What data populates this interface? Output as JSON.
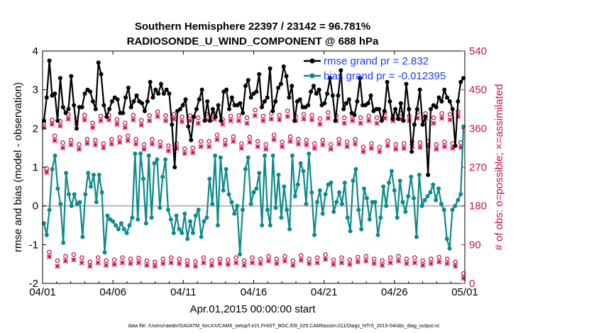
{
  "chart_data": {
    "type": "line",
    "title": "Southern Hemisphere 22397 / 23142 = 96.781%",
    "subtitle": "RADIOSONDE_U_WIND_COMPONENT @ 688 hPa",
    "xlabel": "Apr.01,2015 00:00:00 start",
    "ylabel": "rmse and bias (model - observation)",
    "y2label": "# of obs: o=possible; ×=assimilated",
    "footnote": "data file: /Users/raeder/DAI/ATM_forcXX/CAM6_setup/f.e21.FHIST_BGC.f09_025.CAM6assim.011/Diags_NTrS_2015-04/obs_diag_output.nc",
    "xlim": [
      0,
      30
    ],
    "ylim": [
      -2,
      4
    ],
    "y2lim": [
      0,
      540
    ],
    "x_ticks": [
      0,
      5,
      10,
      15,
      20,
      25,
      30
    ],
    "x_tick_labels": [
      "04/01",
      "04/06",
      "04/11",
      "04/16",
      "04/21",
      "04/26",
      "05/01"
    ],
    "y_ticks": [
      -2,
      -1,
      0,
      1,
      2,
      3,
      4
    ],
    "y_tick_labels": [
      "-2",
      "-1",
      "0",
      "1",
      "2",
      "3",
      "4"
    ],
    "y2_ticks": [
      0,
      90,
      180,
      270,
      360,
      450,
      540
    ],
    "y2_tick_labels": [
      "0",
      "90",
      "180",
      "270",
      "360",
      "450",
      "540"
    ],
    "colors": {
      "rmse": "#000000",
      "bias": "#0e8a8a",
      "obs": "#c8104f",
      "zero_line": "#b8b8b8",
      "legend_text": "#1a3cff"
    },
    "series": [
      {
        "name": "rmse grand pr = 2.832",
        "axis": "left",
        "values": [
          2.2,
          2.8,
          3.75,
          2.85,
          2.9,
          2.2,
          3.3,
          2.55,
          2.4,
          2.5,
          3.35,
          2.6,
          2.0,
          2.55,
          2.55,
          2.9,
          3.0,
          2.95,
          2.7,
          2.5,
          3.7,
          3.4,
          2.6,
          2.3,
          2.5,
          2.7,
          2.8,
          2.75,
          2.4,
          2.4,
          2.8,
          3.05,
          2.55,
          2.7,
          2.85,
          2.7,
          2.65,
          2.45,
          2.7,
          3.2,
          2.8,
          3.0,
          2.9,
          3.15,
          2.9,
          3.0,
          2.9,
          2.1,
          1.0,
          2.45,
          2.5,
          2.6,
          2.75,
          2.05,
          1.7,
          2.3,
          2.5,
          2.75,
          3.0,
          2.2,
          2.7,
          2.2,
          2.5,
          2.3,
          2.6,
          2.2,
          2.95,
          3.0,
          2.5,
          2.8,
          2.6,
          2.6,
          2.65,
          2.4,
          3.1,
          3.25,
          2.8,
          2.9,
          2.95,
          3.4,
          2.55,
          2.7,
          2.8,
          3.55,
          2.45,
          2.7,
          3.05,
          3.15,
          3.6,
          3.35,
          2.8,
          3.1,
          2.2,
          2.7,
          2.75,
          2.55,
          2.55,
          2.6,
          2.95,
          3.1,
          2.9,
          3.0,
          2.6,
          2.65,
          2.9,
          3.3,
          2.85,
          2.2,
          2.85,
          3.5,
          2.5,
          2.65,
          2.75,
          2.4,
          2.35,
          2.7,
          3.3,
          2.6,
          2.6,
          2.65,
          2.85,
          2.45,
          2.5,
          2.5,
          2.2,
          2.45,
          3.2,
          2.7,
          2.25,
          2.5,
          2.25,
          2.65,
          2.2,
          3.15,
          2.5,
          1.4,
          2.1,
          2.5,
          3.0,
          2.1,
          2.3,
          0.8,
          2.5,
          2.6,
          2.55,
          2.8,
          2.7,
          3.0,
          2.8,
          2.7,
          2.5,
          1.55,
          2.7,
          3.2,
          3.3
        ]
      },
      {
        "name": "bias grand pr = -0.012395",
        "axis": "left",
        "values": [
          -0.45,
          -0.75,
          -0.1,
          0.95,
          1.3,
          0.45,
          0.05,
          -0.95,
          0.85,
          0.3,
          0.0,
          0.3,
          0.05,
          0.1,
          -0.8,
          0.3,
          0.85,
          0.5,
          0.8,
          0.1,
          0.8,
          0.35,
          -1.2,
          -0.25,
          -0.35,
          -0.4,
          -0.5,
          -0.6,
          -0.45,
          -0.6,
          -0.7,
          -0.5,
          -0.3,
          1.35,
          -0.35,
          1.35,
          0.7,
          -0.45,
          1.3,
          -0.3,
          1.1,
          1.2,
          -0.05,
          0.75,
          1.2,
          -0.1,
          -0.35,
          -0.7,
          -0.25,
          -0.6,
          -0.7,
          -0.2,
          -0.85,
          -0.4,
          -0.7,
          -0.25,
          -0.1,
          -0.8,
          -0.4,
          -0.3,
          0.7,
          0.05,
          1.3,
          -0.5,
          1.25,
          0.4,
          0.95,
          0.3,
          0.1,
          -0.2,
          0.0,
          -1.25,
          -0.1,
          0.95,
          1.25,
          0.05,
          0.35,
          0.45,
          0.85,
          -0.5,
          1.3,
          -0.1,
          -0.5,
          1.3,
          -0.05,
          0.8,
          -0.3,
          0.5,
          -0.1,
          -0.6,
          1.3,
          0.25,
          0.55,
          1.1,
          0.9,
          0.05,
          1.35,
          0.35,
          -0.75,
          0.1,
          0.4,
          -0.2,
          0.3,
          0.55,
          0.6,
          -0.15,
          0.1,
          0.35,
          0.05,
          0.6,
          -0.3,
          -0.65,
          0.65,
          0.95,
          -0.1,
          -0.6,
          0.45,
          0.2,
          -0.35,
          0.1,
          0.1,
          -0.75,
          -0.3,
          0.5,
          0.0,
          0.6,
          0.9,
          0.4,
          -0.3,
          0.65,
          0.1,
          -0.15,
          0.25,
          0.75,
          0.2,
          -0.8,
          0.8,
          0.0,
          0.15,
          0.25,
          0.35,
          0.55,
          0.15,
          0.45,
          0.05,
          -0.1,
          -0.85,
          -1.1,
          -0.1,
          0.0,
          0.15,
          0.3,
          2.05
        ]
      },
      {
        "name": "possible observations",
        "axis": "right",
        "marker": "o",
        "values": [
          368,
          262,
          68,
          375,
          338,
          48,
          372,
          322,
          58,
          388,
          328,
          62,
          378,
          318,
          55,
          386,
          330,
          45,
          368,
          328,
          55,
          384,
          320,
          48,
          386,
          330,
          50,
          376,
          334,
          55,
          368,
          338,
          52,
          386,
          330,
          54,
          374,
          318,
          48,
          385,
          330,
          45,
          394,
          324,
          52,
          385,
          315,
          55,
          388,
          320,
          52,
          382,
          308,
          48,
          385,
          310,
          46,
          380,
          325,
          55,
          388,
          325,
          48,
          390,
          340,
          52,
          376,
          328,
          50,
          384,
          336,
          55,
          385,
          320,
          48,
          380,
          335,
          55,
          398,
          325,
          52,
          384,
          318,
          58,
          390,
          340,
          52,
          386,
          324,
          58,
          396,
          336,
          48,
          384,
          330,
          60,
          388,
          328,
          52,
          386,
          320,
          55,
          378,
          328,
          62,
          392,
          318,
          50,
          385,
          330,
          55,
          380,
          324,
          50,
          384,
          330,
          56,
          380,
          312,
          58,
          384,
          320,
          52,
          380,
          312,
          48,
          392,
          326,
          55,
          384,
          318,
          58,
          390,
          320,
          52,
          384,
          324,
          55,
          392,
          322,
          48,
          390,
          325,
          52,
          380,
          318,
          56,
          390,
          324,
          52,
          388,
          320,
          45,
          394,
          322,
          18
        ]
      },
      {
        "name": "assimilated observations",
        "axis": "right",
        "marker": "x",
        "values": [
          362,
          258,
          62,
          370,
          332,
          40,
          366,
          315,
          52,
          382,
          322,
          55,
          372,
          312,
          48,
          380,
          325,
          40,
          362,
          322,
          48,
          378,
          315,
          42,
          380,
          324,
          44,
          370,
          328,
          48,
          362,
          332,
          46,
          380,
          324,
          48,
          368,
          312,
          42,
          378,
          324,
          40,
          388,
          318,
          46,
          378,
          308,
          48,
          382,
          314,
          46,
          376,
          302,
          42,
          378,
          304,
          40,
          372,
          318,
          48,
          380,
          318,
          42,
          382,
          334,
          46,
          370,
          322,
          44,
          378,
          330,
          48,
          378,
          314,
          42,
          372,
          328,
          48,
          390,
          318,
          46,
          378,
          312,
          52,
          382,
          334,
          46,
          380,
          318,
          52,
          388,
          330,
          42,
          378,
          324,
          54,
          382,
          322,
          46,
          380,
          314,
          48,
          370,
          322,
          56,
          384,
          312,
          44,
          378,
          324,
          48,
          372,
          318,
          44,
          378,
          324,
          50,
          372,
          306,
          52,
          378,
          314,
          46,
          372,
          306,
          42,
          384,
          320,
          48,
          378,
          312,
          52,
          382,
          314,
          46,
          378,
          318,
          48,
          384,
          316,
          42,
          384,
          320,
          46,
          372,
          312,
          50,
          384,
          318,
          46,
          380,
          314,
          40,
          388,
          316,
          12
        ]
      }
    ]
  }
}
